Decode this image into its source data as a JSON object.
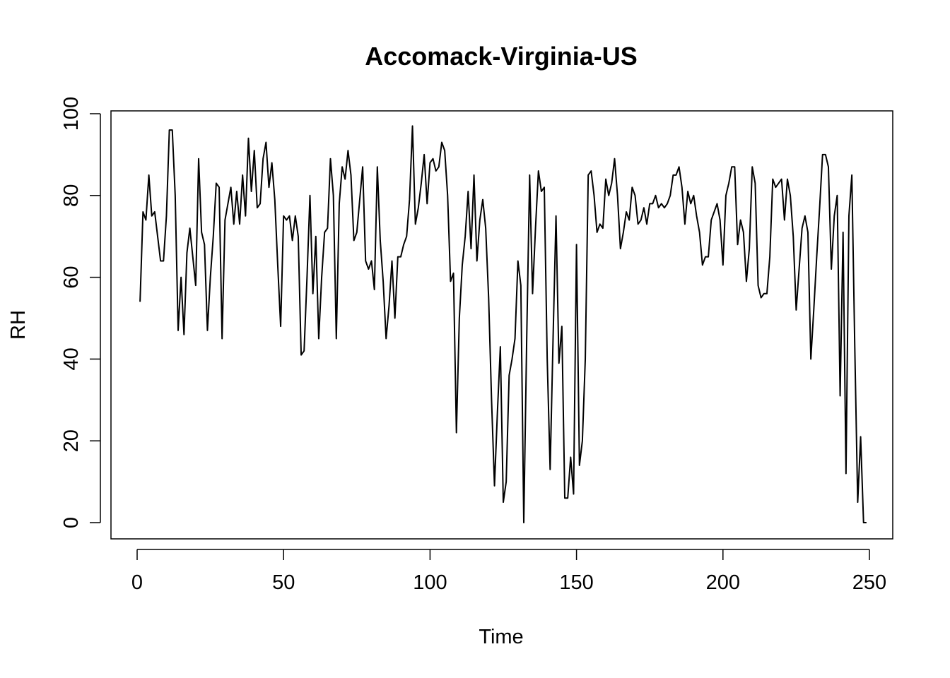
{
  "chart_data": {
    "type": "line",
    "title": "Accomack-Virginia-US",
    "xlabel": "Time",
    "ylabel": "RH",
    "xlim": [
      1,
      248
    ],
    "ylim": [
      0,
      97
    ],
    "x_ticks": [
      "0",
      "50",
      "100",
      "150",
      "200",
      "250"
    ],
    "y_ticks": [
      "0",
      "20",
      "40",
      "60",
      "80",
      "100"
    ],
    "grid": false,
    "line_color": "#000000",
    "series": [
      {
        "values": [
          54,
          76,
          74,
          85,
          75,
          76,
          70,
          64,
          64,
          75,
          96,
          96,
          80,
          47,
          60,
          46,
          66,
          72,
          65,
          58,
          89,
          71,
          68,
          47,
          60,
          70,
          83,
          82,
          45,
          74,
          78,
          82,
          73,
          81,
          73,
          85,
          75,
          94,
          81,
          91,
          77,
          78,
          89,
          93,
          82,
          88,
          79,
          63,
          48,
          75,
          74,
          75,
          69,
          75,
          70,
          41,
          42,
          60,
          80,
          56,
          70,
          45,
          60,
          71,
          72,
          89,
          80,
          45,
          78,
          87,
          84,
          91,
          85,
          69,
          71,
          79,
          87,
          64,
          62,
          64,
          57,
          87,
          69,
          59,
          45,
          53,
          64,
          50,
          65,
          65,
          68,
          70,
          79,
          97,
          73,
          77,
          83,
          90,
          78,
          88,
          89,
          86,
          87,
          93,
          91,
          80,
          59,
          61,
          22,
          50,
          63,
          70,
          81,
          67,
          85,
          64,
          74,
          79,
          72,
          55,
          30,
          9,
          27,
          43,
          5,
          10,
          36,
          40,
          45,
          64,
          58,
          0,
          45,
          85,
          56,
          72,
          86,
          81,
          82,
          40,
          13,
          45,
          75,
          39,
          48,
          6,
          6,
          16,
          7,
          68,
          14,
          20,
          40,
          85,
          86,
          80,
          71,
          73,
          72,
          84,
          80,
          83,
          89,
          80,
          67,
          71,
          76,
          74,
          82,
          80,
          73,
          74,
          77,
          73,
          78,
          78,
          80,
          77,
          78,
          77,
          78,
          80,
          85,
          85,
          87,
          82,
          73,
          81,
          78,
          80,
          75,
          71,
          63,
          65,
          65,
          74,
          76,
          78,
          74,
          63,
          80,
          83,
          87,
          87,
          68,
          74,
          71,
          59,
          67,
          87,
          83,
          58,
          55,
          56,
          56,
          65,
          84,
          82,
          83,
          84,
          74,
          84,
          80,
          70,
          52,
          62,
          72,
          75,
          71,
          40,
          52,
          65,
          77,
          90,
          90,
          87,
          62,
          75,
          80,
          31,
          71,
          12,
          75,
          85,
          43,
          5,
          21,
          0,
          0
        ]
      }
    ]
  }
}
